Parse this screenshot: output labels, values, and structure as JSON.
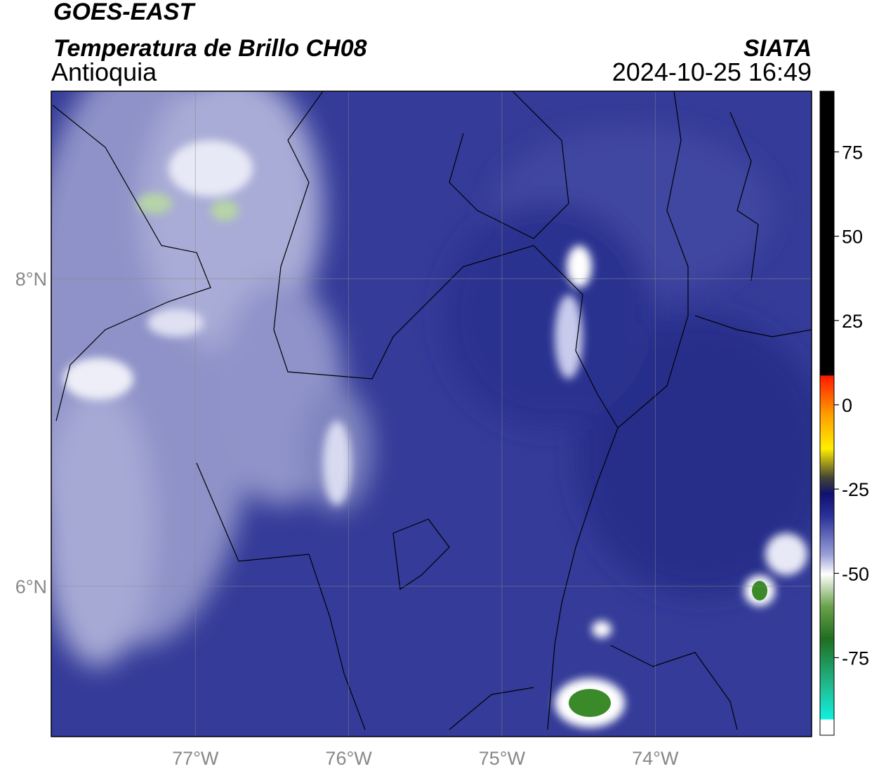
{
  "header": {
    "title": "GOES-EAST",
    "subtitle": "Temperatura de Brillo CH08",
    "region": "Antioquia",
    "source": "SIATA",
    "datetime": "2024-10-25 16:49"
  },
  "map": {
    "lonlim": [
      -77.94,
      -72.98
    ],
    "latlim": [
      5.02,
      9.22
    ],
    "lon_ticks": [
      {
        "value": -77,
        "label": "77°W"
      },
      {
        "value": -76,
        "label": "76°W"
      },
      {
        "value": -75,
        "label": "75°W"
      },
      {
        "value": -74,
        "label": "74°W"
      }
    ],
    "lat_ticks": [
      {
        "value": 8,
        "label": "8°N"
      },
      {
        "value": 6,
        "label": "6°N"
      }
    ]
  },
  "colorbar": {
    "lim": [
      -98,
      93
    ],
    "ticks": [
      75,
      50,
      25,
      0,
      -25,
      -50,
      -75
    ]
  }
}
